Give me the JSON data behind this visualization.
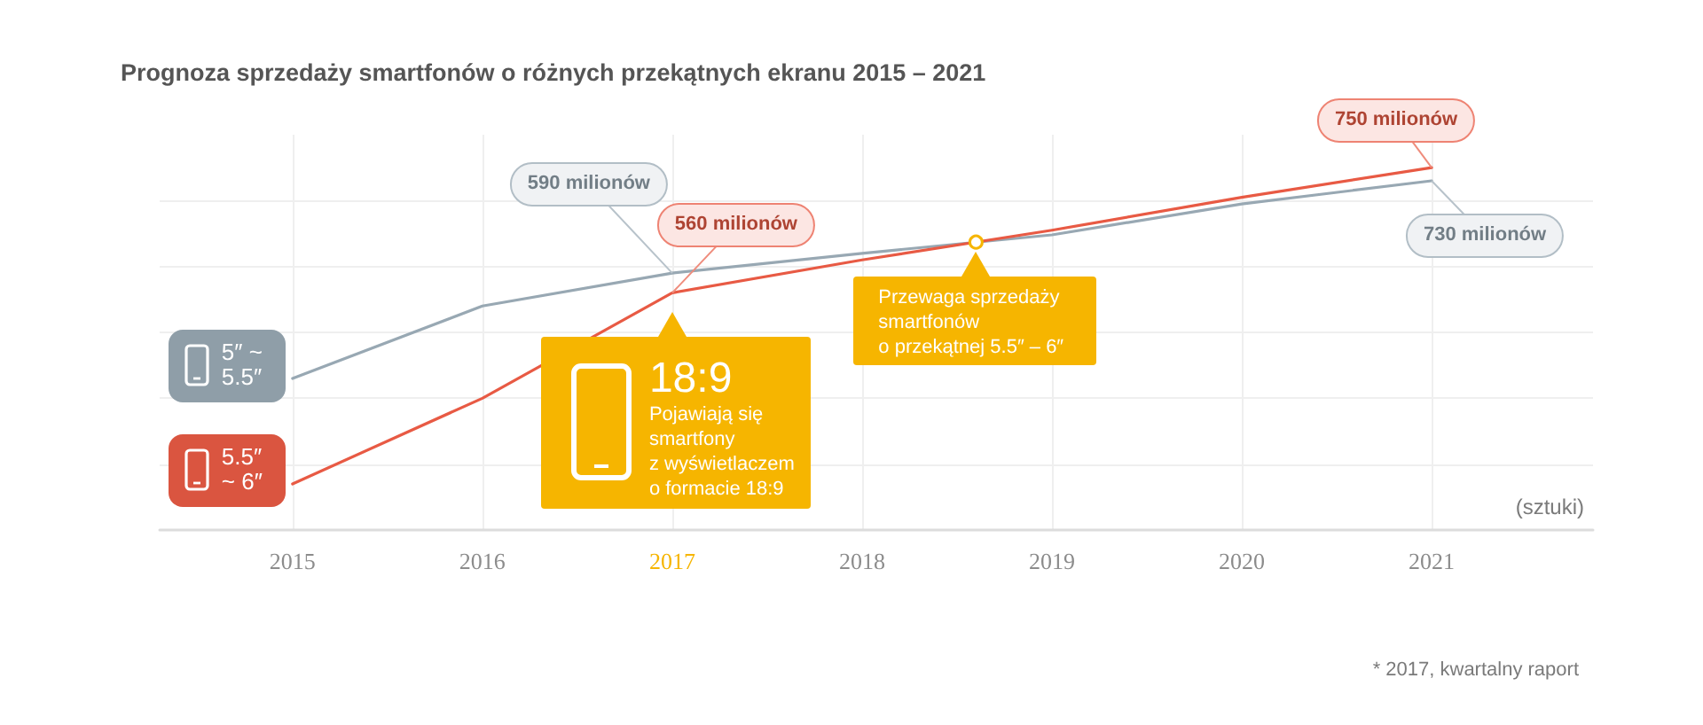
{
  "chart_data": {
    "type": "line",
    "title": "Prognoza sprzedaży smartfonów o różnych przekątnych ekranu 2015 – 2021",
    "x": [
      2015,
      2016,
      2017,
      2018,
      2019,
      2020,
      2021
    ],
    "series": [
      {
        "name": "5″ ~ 5.5″",
        "color": "#98a8b3",
        "values": [
          430,
          540,
          590,
          620,
          648,
          695,
          730
        ],
        "value_labels": [
          null,
          null,
          "590 milionów",
          null,
          null,
          null,
          "730 milionów"
        ]
      },
      {
        "name": "5.5″ ~ 6″",
        "color": "#e85a44",
        "values": [
          270,
          400,
          560,
          610,
          655,
          705,
          750
        ],
        "value_labels": [
          null,
          null,
          "560 milionów",
          null,
          null,
          null,
          "750 milionów"
        ]
      }
    ],
    "xlim": [
      2014.3,
      2021.85
    ],
    "xticks": [
      2015,
      2016,
      2017,
      2018,
      2019,
      2020,
      2021
    ],
    "ylim": [
      200,
      800
    ],
    "yticks": [
      {
        "value": 300,
        "label": null
      },
      {
        "value": 400,
        "label": null
      },
      {
        "value": 500,
        "label": null
      },
      {
        "value": 600,
        "label": null
      },
      {
        "value": 700,
        "label": null
      }
    ],
    "tick_labels": "x",
    "grid": true,
    "marker": "none",
    "line_style": "solid",
    "annotations": [
      {
        "text": "18:9\nPojawiają się\nsmartfony\nz wyświetlaczem\no formacie 18:9",
        "x": 2017,
        "y": 560
      },
      {
        "text": "Przewaga sprzedaży\nsmartfonów\no przekątnej 5.5″ – 6″",
        "x": 2018.6,
        "y": 637
      },
      "(sztuki)",
      "* 2017, kwartalny raport"
    ]
  }
}
